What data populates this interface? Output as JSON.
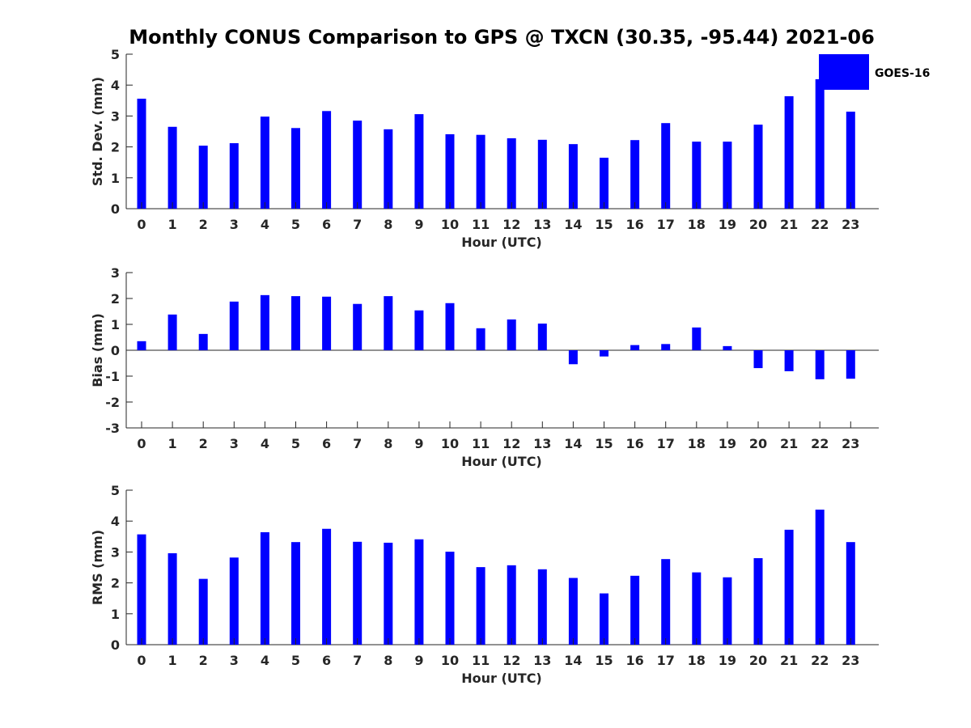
{
  "chart_data": [
    {
      "type": "bar",
      "title": "Monthly CONUS Comparison to GPS @ TXCN (30.35, -95.44) 2021-06",
      "xlabel": "Hour (UTC)",
      "ylabel": "Std. Dev. (mm)",
      "categories": [
        "0",
        "1",
        "2",
        "3",
        "4",
        "5",
        "6",
        "7",
        "8",
        "9",
        "10",
        "11",
        "12",
        "13",
        "14",
        "15",
        "16",
        "17",
        "18",
        "19",
        "20",
        "21",
        "22",
        "23"
      ],
      "series": [
        {
          "name": "GOES-16",
          "values": [
            3.56,
            2.65,
            2.04,
            2.12,
            2.98,
            2.61,
            3.16,
            2.85,
            2.57,
            3.06,
            2.41,
            2.39,
            2.28,
            2.23,
            2.09,
            1.65,
            2.22,
            2.77,
            2.17,
            2.17,
            2.72,
            3.64,
            4.19,
            3.14
          ]
        }
      ],
      "ylim": [
        0,
        5
      ],
      "yticks": [
        "0",
        "1",
        "2",
        "3",
        "4",
        "5"
      ],
      "legend": {
        "entries": [
          "GOES-16"
        ],
        "placement": "top-right",
        "color": "#0000ff"
      }
    },
    {
      "type": "bar",
      "xlabel": "Hour (UTC)",
      "ylabel": "Bias (mm)",
      "categories": [
        "0",
        "1",
        "2",
        "3",
        "4",
        "5",
        "6",
        "7",
        "8",
        "9",
        "10",
        "11",
        "12",
        "13",
        "14",
        "15",
        "16",
        "17",
        "18",
        "19",
        "20",
        "21",
        "22",
        "23"
      ],
      "series": [
        {
          "name": "GOES-16",
          "values": [
            0.35,
            1.38,
            0.63,
            1.88,
            2.13,
            2.09,
            2.07,
            1.79,
            2.09,
            1.54,
            1.82,
            0.85,
            1.19,
            1.03,
            -0.54,
            -0.24,
            0.2,
            0.24,
            0.88,
            0.16,
            -0.69,
            -0.81,
            -1.12,
            -1.1
          ]
        }
      ],
      "ylim": [
        -3,
        3
      ],
      "yticks": [
        "-3",
        "-2",
        "-1",
        "0",
        "1",
        "2",
        "3"
      ]
    },
    {
      "type": "bar",
      "xlabel": "Hour (UTC)",
      "ylabel": "RMS (mm)",
      "categories": [
        "0",
        "1",
        "2",
        "3",
        "4",
        "5",
        "6",
        "7",
        "8",
        "9",
        "10",
        "11",
        "12",
        "13",
        "14",
        "15",
        "16",
        "17",
        "18",
        "19",
        "20",
        "21",
        "22",
        "23"
      ],
      "series": [
        {
          "name": "GOES-16",
          "values": [
            3.57,
            2.96,
            2.13,
            2.82,
            3.64,
            3.32,
            3.75,
            3.33,
            3.3,
            3.41,
            3.01,
            2.51,
            2.57,
            2.44,
            2.16,
            1.66,
            2.23,
            2.77,
            2.34,
            2.18,
            2.8,
            3.72,
            4.37,
            3.32
          ]
        }
      ],
      "ylim": [
        0,
        5
      ],
      "yticks": [
        "0",
        "1",
        "2",
        "3",
        "4",
        "5"
      ]
    }
  ],
  "colors": {
    "bar": "#0000ff",
    "axis": "#262626"
  }
}
